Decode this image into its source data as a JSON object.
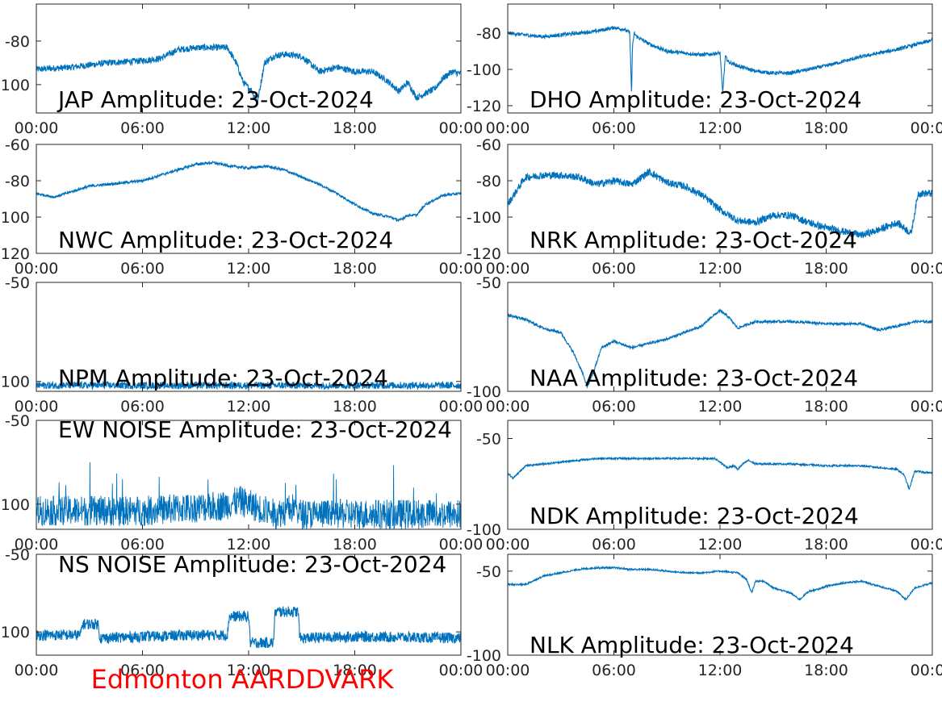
{
  "footer": "Edmonton AARDDVARK",
  "colors": {
    "series": "#0072bd",
    "axis": "#262626",
    "footer": "#ff0000"
  },
  "chart_data": [
    {
      "id": "JAP",
      "type": "line",
      "title": "JAP Amplitude: 23-Oct-2024",
      "ylim": [
        -113,
        -63
      ],
      "yticks": [
        -80,
        -100
      ],
      "ytick_labels": [
        "-80",
        "-100"
      ],
      "xticks": [
        0,
        6,
        12,
        18,
        24
      ],
      "xtick_labels": [
        "00:00",
        "06:00",
        "12:00",
        "18:00",
        "00:00"
      ],
      "noise": 1.5,
      "x": [
        0,
        2,
        4,
        6,
        7,
        8,
        9,
        10,
        10.8,
        11.3,
        11.7,
        12.2,
        12.5,
        12.9,
        13.4,
        14,
        15,
        16,
        17,
        18,
        19,
        19.8,
        20.5,
        21,
        21.5,
        22,
        22.5,
        23,
        23.5,
        24
      ],
      "y": [
        -93,
        -92,
        -90,
        -89,
        -88,
        -84,
        -83,
        -83,
        -83,
        -90,
        -99,
        -103,
        -108,
        -90,
        -87,
        -86,
        -87,
        -94,
        -92,
        -94,
        -94,
        -98,
        -103,
        -99,
        -106,
        -104,
        -102,
        -97,
        -94,
        -95
      ]
    },
    {
      "id": "DHO",
      "type": "line",
      "title": "DHO Amplitude: 23-Oct-2024",
      "ylim": [
        -124,
        -64
      ],
      "yticks": [
        -80,
        -100,
        -120
      ],
      "ytick_labels": [
        "-80",
        "-100",
        "-120"
      ],
      "xticks": [
        0,
        6,
        12,
        18,
        24
      ],
      "xtick_labels": [
        "00:00",
        "06:00",
        "12:00",
        "18:00",
        "00:00"
      ],
      "noise": 1.0,
      "x": [
        0,
        2,
        4,
        5,
        6,
        6.6,
        6.9,
        7.0,
        7.05,
        7.15,
        7.3,
        8,
        9,
        10,
        11,
        12,
        12.15,
        12.3,
        12.5,
        13,
        14,
        15,
        16,
        17,
        18,
        20,
        22,
        24
      ],
      "y": [
        -80,
        -82,
        -80,
        -79,
        -77,
        -78,
        -80,
        -114,
        -88,
        -80,
        -82,
        -86,
        -90,
        -91,
        -92,
        -91,
        -113,
        -93,
        -96,
        -98,
        -101,
        -102,
        -102,
        -100,
        -98,
        -93,
        -89,
        -84
      ]
    },
    {
      "id": "NWC",
      "type": "line",
      "title": "NWC Amplitude: 23-Oct-2024",
      "ylim": [
        -120,
        -60
      ],
      "yticks": [
        -60,
        -80,
        -100,
        -120
      ],
      "ytick_labels": [
        "-60",
        "-80",
        "-100",
        "-120"
      ],
      "xticks": [
        0,
        6,
        12,
        18,
        24
      ],
      "xtick_labels": [
        "00:00",
        "06:00",
        "12:00",
        "18:00",
        "00:00"
      ],
      "noise": 0.7,
      "x": [
        0,
        1,
        2,
        3,
        4,
        5,
        6,
        7,
        8,
        9,
        10,
        11,
        12,
        13,
        14,
        15,
        16,
        17,
        18,
        19,
        20,
        20.5,
        21,
        21.5,
        22,
        23,
        24
      ],
      "y": [
        -87,
        -89,
        -86,
        -83,
        -82,
        -81,
        -80,
        -77,
        -74,
        -71,
        -70,
        -72,
        -73,
        -72,
        -74,
        -78,
        -82,
        -87,
        -93,
        -98,
        -100,
        -102,
        -99,
        -99,
        -93,
        -88,
        -87
      ]
    },
    {
      "id": "NRK",
      "type": "line",
      "title": "NRK Amplitude: 23-Oct-2024",
      "ylim": [
        -120,
        -60
      ],
      "yticks": [
        -60,
        -80,
        -100,
        -120
      ],
      "ytick_labels": [
        "-60",
        "-80",
        "-100",
        "-120"
      ],
      "xticks": [
        0,
        6,
        12,
        18,
        24
      ],
      "xtick_labels": [
        "00:00",
        "06:00",
        "12:00",
        "18:00",
        "00:00"
      ],
      "noise": 2.0,
      "x": [
        0,
        1,
        2,
        3,
        4,
        5,
        6,
        7,
        8,
        9,
        10,
        11,
        12,
        13,
        14,
        15,
        16,
        17,
        18,
        19,
        20,
        21,
        22,
        22.8,
        23.2,
        24
      ],
      "y": [
        -93,
        -78,
        -77,
        -77,
        -78,
        -82,
        -80,
        -82,
        -75,
        -81,
        -83,
        -88,
        -96,
        -102,
        -103,
        -99,
        -99,
        -103,
        -106,
        -108,
        -110,
        -107,
        -103,
        -109,
        -87,
        -87
      ]
    },
    {
      "id": "NPM",
      "type": "line",
      "title": "NPM Amplitude: 23-Oct-2024",
      "ylim": [
        -105,
        -50
      ],
      "yticks": [
        -50,
        -100
      ],
      "ytick_labels": [
        "-50",
        "-100"
      ],
      "xticks": [
        0,
        6,
        12,
        18,
        24
      ],
      "xtick_labels": [
        "00:00",
        "06:00",
        "12:00",
        "18:00",
        "00:00"
      ],
      "noise": 1.8,
      "x": [
        0,
        6,
        12,
        18,
        24
      ],
      "y": [
        -102,
        -102,
        -102,
        -102,
        -102
      ]
    },
    {
      "id": "NAA",
      "type": "line",
      "title": "NAA Amplitude: 23-Oct-2024",
      "ylim": [
        -100,
        -50
      ],
      "yticks": [
        -50,
        -100
      ],
      "ytick_labels": [
        "-50",
        "-100"
      ],
      "xticks": [
        0,
        6,
        12,
        18,
        24
      ],
      "xtick_labels": [
        "00:00",
        "06:00",
        "12:00",
        "18:00",
        "00:00"
      ],
      "noise": 0.6,
      "x": [
        0,
        1,
        2,
        3,
        3.7,
        4.2,
        4.5,
        4.9,
        5.3,
        6,
        7,
        8,
        9,
        10,
        11,
        11.5,
        12,
        12.5,
        13,
        14,
        16,
        18,
        20,
        21,
        22,
        23,
        24
      ],
      "y": [
        -65,
        -67,
        -71,
        -73,
        -82,
        -91,
        -98,
        -90,
        -80,
        -77,
        -80,
        -78,
        -76,
        -73,
        -70,
        -66,
        -63,
        -66,
        -71,
        -68,
        -68,
        -69,
        -69,
        -72,
        -70,
        -68,
        -68
      ]
    },
    {
      "id": "EW_NOISE",
      "type": "line",
      "title": "EW NOISE Amplitude: 23-Oct-2024",
      "ylim": [
        -115,
        -50
      ],
      "yticks": [
        -50,
        -100
      ],
      "ytick_labels": [
        "-50",
        "-100"
      ],
      "xticks": [
        0,
        6,
        12,
        18,
        24
      ],
      "xtick_labels": [
        "00:00",
        "06:00",
        "12:00",
        "18:00",
        "00:00"
      ],
      "noise": 9,
      "x": [
        0,
        6,
        10.5,
        11.5,
        12.5,
        13.5,
        14.6,
        15,
        18,
        24
      ],
      "y": [
        -104,
        -104,
        -101,
        -98,
        -102,
        -106,
        -102,
        -106,
        -106,
        -106
      ]
    },
    {
      "id": "NDK",
      "type": "line",
      "title": "NDK Amplitude: 23-Oct-2024",
      "ylim": [
        -100,
        -40
      ],
      "yticks": [
        -50,
        -100
      ],
      "ytick_labels": [
        "-50",
        "-100"
      ],
      "xticks": [
        0,
        6,
        12,
        18,
        24
      ],
      "xtick_labels": [
        "00:00",
        "06:00",
        "12:00",
        "18:00",
        "00:00"
      ],
      "noise": 0.5,
      "x": [
        0,
        0.3,
        1,
        2,
        3,
        4,
        5,
        6,
        8,
        10,
        11,
        11.7,
        12,
        12.4,
        12.8,
        13,
        13.3,
        13.6,
        14,
        16,
        18,
        20,
        21,
        22,
        22.4,
        22.7,
        23,
        24
      ],
      "y": [
        -69,
        -72,
        -65,
        -64,
        -63,
        -62,
        -61,
        -61,
        -61,
        -61,
        -61,
        -61,
        -63,
        -66,
        -65,
        -67,
        -64,
        -62,
        -64,
        -64,
        -65,
        -65,
        -66,
        -67,
        -70,
        -78,
        -68,
        -69
      ]
    },
    {
      "id": "NS_NOISE",
      "type": "line",
      "title": "NS NOISE Amplitude: 23-Oct-2024",
      "ylim": [
        -115,
        -50
      ],
      "yticks": [
        -50,
        -100
      ],
      "ytick_labels": [
        "-50",
        "-100"
      ],
      "xticks": [
        0,
        6,
        12,
        18,
        24
      ],
      "xtick_labels": [
        "00:00",
        "06:00",
        "12:00",
        "18:00",
        "00:00"
      ],
      "noise": 3.5,
      "x": [
        0,
        2.5,
        2.6,
        3.5,
        3.6,
        6,
        9,
        10.8,
        10.9,
        12,
        12.1,
        13.4,
        13.5,
        14.8,
        14.9,
        18,
        24
      ],
      "y": [
        -102,
        -102,
        -95,
        -95,
        -104,
        -103,
        -102,
        -102,
        -90,
        -90,
        -107,
        -107,
        -87,
        -87,
        -104,
        -103,
        -104
      ]
    },
    {
      "id": "NLK",
      "type": "line",
      "title": "NLK Amplitude: 23-Oct-2024",
      "ylim": [
        -100,
        -40
      ],
      "yticks": [
        -50,
        -100
      ],
      "ytick_labels": [
        "-50",
        "-100"
      ],
      "xticks": [
        0,
        6,
        12,
        18,
        24
      ],
      "xtick_labels": [
        "00:00",
        "06:00",
        "12:00",
        "18:00",
        "00:00"
      ],
      "noise": 0.5,
      "x": [
        0,
        1,
        2,
        3,
        4,
        5,
        6,
        7,
        8,
        9,
        10,
        11,
        12,
        13,
        13.5,
        13.8,
        14,
        14.5,
        15,
        16,
        16.5,
        17,
        17.5,
        18,
        19,
        20,
        21,
        22,
        22.5,
        23,
        24
      ],
      "y": [
        -58,
        -58,
        -53,
        -51,
        -49,
        -48,
        -48,
        -49,
        -49,
        -50,
        -51,
        -51,
        -50,
        -51,
        -55,
        -63,
        -56,
        -56,
        -60,
        -63,
        -67,
        -62,
        -61,
        -59,
        -57,
        -56,
        -59,
        -62,
        -67,
        -60,
        -57
      ]
    }
  ]
}
